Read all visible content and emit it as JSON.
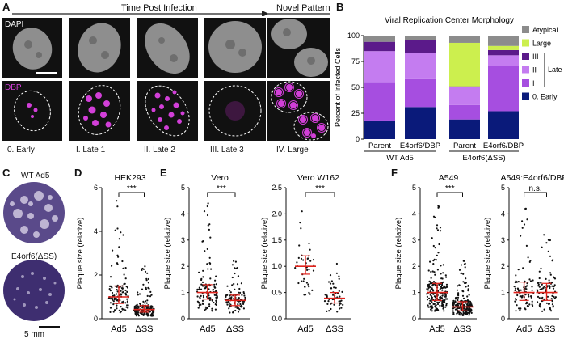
{
  "panels": {
    "A": {
      "label": "A",
      "time_header": "Time Post Infection",
      "novel_header": "Novel Pattern",
      "row_labels": [
        "DAPI",
        "DBP"
      ],
      "stages": [
        "0. Early",
        "I. Late 1",
        "II. Late 2",
        "III. Late 3",
        "IV. Large"
      ]
    },
    "B": {
      "label": "B"
    },
    "C": {
      "label": "C",
      "top_label": "WT Ad5",
      "bottom_label": "E4orf6(ΔSS)",
      "scale_label": "5 mm"
    },
    "D": {
      "label": "D"
    },
    "E": {
      "label": "E"
    },
    "F": {
      "label": "F"
    }
  },
  "colors": {
    "dbp": "#d23fd8",
    "early": "#0a1a7a",
    "late1": "#c47cf0",
    "late2": "#a64ee0",
    "late3": "#5b1a8a",
    "large": "#ccef4e",
    "atypical": "#8c8c8c",
    "median": "#e0221b"
  },
  "chart_data": [
    {
      "id": "B",
      "type": "bar",
      "stacked": true,
      "title": "Viral Replication Center Morphology",
      "ylabel": "Percent of Infected Cells",
      "ylim": [
        0,
        100
      ],
      "yticks": [
        0,
        25,
        50,
        75,
        100
      ],
      "categories": [
        "Parent",
        "E4orf6/DBP",
        "Parent",
        "E4orf6/DBP"
      ],
      "groups": [
        {
          "label": "WT Ad5",
          "categories": [
            0,
            1
          ]
        },
        {
          "label": "E4orf6(ΔSS)",
          "categories": [
            2,
            3
          ]
        }
      ],
      "series": [
        {
          "name": "0. Early",
          "color": "#0a1a7a",
          "values": [
            18,
            31,
            19,
            27
          ]
        },
        {
          "name": "I",
          "color": "#a64ee0",
          "values": [
            37,
            27,
            14,
            44
          ]
        },
        {
          "name": "II",
          "color": "#c47cf0",
          "values": [
            30,
            25,
            17,
            10
          ]
        },
        {
          "name": "III",
          "color": "#5b1a8a",
          "values": [
            9,
            13,
            1,
            5
          ]
        },
        {
          "name": "Large",
          "color": "#ccef4e",
          "values": [
            0,
            0,
            42,
            4
          ]
        },
        {
          "name": "Atypical",
          "color": "#8c8c8c",
          "values": [
            6,
            4,
            7,
            10
          ]
        }
      ],
      "legend": [
        "Atypical",
        "Large",
        "III",
        "II",
        "I",
        "0. Early"
      ],
      "legend_bracket": "Late"
    },
    {
      "id": "D",
      "type": "scatter",
      "title": "HEK293",
      "ylabel": "Plaque size (relative)",
      "ylim": [
        0,
        6
      ],
      "yticks": [
        0,
        2,
        4,
        6
      ],
      "categories": [
        "Ad5",
        "ΔSS"
      ],
      "medians": [
        1.0,
        0.42
      ],
      "iqr": [
        [
          0.7,
          1.5
        ],
        [
          0.3,
          0.6
        ]
      ],
      "max": [
        5.4,
        2.4
      ],
      "n": [
        110,
        170
      ],
      "significance": "***"
    },
    {
      "id": "E1",
      "type": "scatter",
      "title": "Vero",
      "ylabel": "Plaque size (relative)",
      "ylim": [
        0,
        5
      ],
      "yticks": [
        0,
        1,
        2,
        3,
        4,
        5
      ],
      "categories": [
        "Ad5",
        "ΔSS"
      ],
      "medians": [
        1.0,
        0.7
      ],
      "iqr": [
        [
          0.75,
          1.3
        ],
        [
          0.5,
          0.9
        ]
      ],
      "max": [
        4.4,
        2.2
      ],
      "n": [
        110,
        100
      ],
      "significance": "***"
    },
    {
      "id": "E2",
      "type": "scatter",
      "title": "Vero W162",
      "ylabel": "Plaque size (relative)",
      "ylim": [
        0,
        2.5
      ],
      "yticks": [
        0.0,
        0.5,
        1.0,
        1.5,
        2.0,
        2.5
      ],
      "categories": [
        "Ad5",
        "ΔSS"
      ],
      "medians": [
        1.0,
        0.39
      ],
      "iqr": [
        [
          0.85,
          1.2
        ],
        [
          0.3,
          0.5
        ]
      ],
      "max": [
        2.05,
        1.05
      ],
      "n": [
        40,
        50
      ],
      "significance": "***"
    },
    {
      "id": "F1",
      "type": "scatter",
      "title": "A549",
      "ylabel": "Plaque size (relative)",
      "ylim": [
        0,
        5
      ],
      "yticks": [
        0,
        1,
        2,
        3,
        4,
        5
      ],
      "categories": [
        "Ad5",
        "ΔSS"
      ],
      "medians": [
        1.0,
        0.45
      ],
      "iqr": [
        [
          0.7,
          1.35
        ],
        [
          0.3,
          0.65
        ]
      ],
      "max": [
        4.3,
        2.2
      ],
      "n": [
        210,
        200
      ],
      "significance": "***"
    },
    {
      "id": "F2",
      "type": "scatter",
      "title": "A549:E4orf6/DBP",
      "ylabel": "Plaque size (relative)",
      "ylim": [
        0,
        5
      ],
      "yticks": [
        0,
        1,
        2,
        3,
        4,
        5
      ],
      "categories": [
        "Ad5",
        "ΔSS"
      ],
      "medians": [
        1.0,
        1.0
      ],
      "iqr": [
        [
          0.7,
          1.4
        ],
        [
          0.7,
          1.35
        ]
      ],
      "max": [
        4.2,
        3.2
      ],
      "n": [
        80,
        90
      ],
      "significance": "n.s."
    }
  ]
}
